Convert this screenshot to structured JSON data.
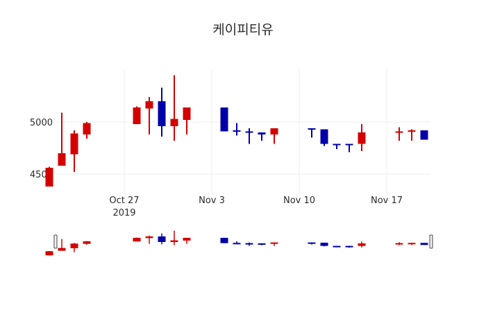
{
  "title": "케이피티유",
  "colors": {
    "increasing": "#d40000",
    "decreasing": "#0000a8",
    "grid": "#eeeeee"
  },
  "chart_data": {
    "type": "candlestick",
    "title": "케이피티유",
    "xlabel": "",
    "ylabel": "",
    "ylim": [
      4330,
      5470
    ],
    "yticks": [
      4500,
      5000
    ],
    "xticks": [
      {
        "date": "2019-10-27",
        "label": "Oct 27",
        "sublabel": "2019"
      },
      {
        "date": "2019-11-03",
        "label": "Nov 3"
      },
      {
        "date": "2019-11-10",
        "label": "Nov 10"
      },
      {
        "date": "2019-11-17",
        "label": "Nov 17"
      }
    ],
    "grid": true,
    "rangeslider": true,
    "candles": [
      {
        "date": "2019-10-21",
        "open": 4380,
        "high": 4570,
        "low": 4380,
        "close": 4560
      },
      {
        "date": "2019-10-22",
        "open": 4580,
        "high": 5090,
        "low": 4580,
        "close": 4700
      },
      {
        "date": "2019-10-23",
        "open": 4690,
        "high": 4920,
        "low": 4520,
        "close": 4890
      },
      {
        "date": "2019-10-24",
        "open": 4880,
        "high": 5000,
        "low": 4840,
        "close": 4990
      },
      {
        "date": "2019-10-28",
        "open": 4980,
        "high": 5150,
        "low": 4980,
        "close": 5140
      },
      {
        "date": "2019-10-29",
        "open": 5130,
        "high": 5240,
        "low": 4880,
        "close": 5200
      },
      {
        "date": "2019-10-30",
        "open": 5200,
        "high": 5330,
        "low": 4860,
        "close": 4960
      },
      {
        "date": "2019-10-31",
        "open": 4960,
        "high": 5450,
        "low": 4820,
        "close": 5030
      },
      {
        "date": "2019-11-01",
        "open": 5020,
        "high": 5140,
        "low": 4880,
        "close": 5140
      },
      {
        "date": "2019-11-04",
        "open": 5140,
        "high": 5140,
        "low": 4910,
        "close": 4910
      },
      {
        "date": "2019-11-05",
        "open": 4920,
        "high": 4990,
        "low": 4870,
        "close": 4910
      },
      {
        "date": "2019-11-06",
        "open": 4910,
        "high": 4940,
        "low": 4790,
        "close": 4900
      },
      {
        "date": "2019-11-07",
        "open": 4900,
        "high": 4900,
        "low": 4820,
        "close": 4880
      },
      {
        "date": "2019-11-08",
        "open": 4880,
        "high": 4940,
        "low": 4790,
        "close": 4940
      },
      {
        "date": "2019-11-11",
        "open": 4940,
        "high": 4940,
        "low": 4850,
        "close": 4930
      },
      {
        "date": "2019-11-12",
        "open": 4930,
        "high": 4930,
        "low": 4770,
        "close": 4790
      },
      {
        "date": "2019-11-13",
        "open": 4790,
        "high": 4790,
        "low": 4740,
        "close": 4780
      },
      {
        "date": "2019-11-14",
        "open": 4790,
        "high": 4790,
        "low": 4710,
        "close": 4780
      },
      {
        "date": "2019-11-15",
        "open": 4790,
        "high": 4980,
        "low": 4720,
        "close": 4900
      },
      {
        "date": "2019-11-18",
        "open": 4900,
        "high": 4950,
        "low": 4820,
        "close": 4910
      },
      {
        "date": "2019-11-19",
        "open": 4910,
        "high": 4930,
        "low": 4820,
        "close": 4920
      },
      {
        "date": "2019-11-20",
        "open": 4920,
        "high": 4920,
        "low": 4830,
        "close": 4830
      }
    ]
  }
}
